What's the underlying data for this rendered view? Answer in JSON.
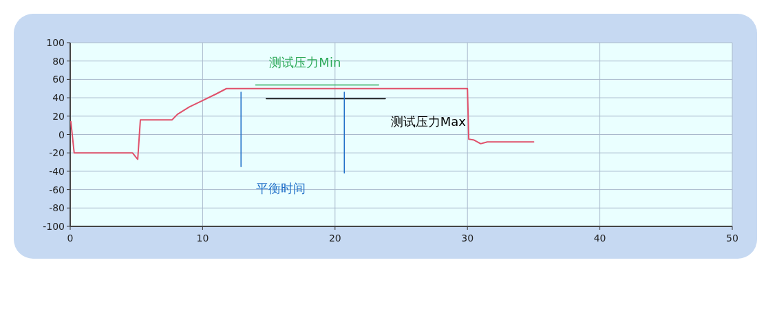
{
  "chart_data": {
    "type": "line",
    "xlim": [
      0,
      50
    ],
    "xticks": [
      0,
      10,
      20,
      30,
      40,
      50
    ],
    "ylim": [
      -100,
      100
    ],
    "yticks": [
      -100,
      -80,
      -60,
      -40,
      -20,
      0,
      20,
      40,
      60,
      80,
      100
    ],
    "grid": true,
    "marker": "none",
    "line_style": "solid",
    "series": [
      {
        "color": "#e0506a",
        "x": [
          0.05,
          0.3,
          4.7,
          5.1,
          5.3,
          7.7,
          8.1,
          9,
          10,
          11,
          11.8,
          12.2,
          30,
          30.1,
          30.5,
          31,
          31.5,
          35
        ],
        "values": [
          14,
          -20,
          -20,
          -27,
          16,
          16,
          22,
          30,
          37,
          44,
          50,
          50,
          50,
          -5,
          -6,
          -10,
          -8,
          -8
        ]
      },
      {
        "name": "测试压力Min",
        "color": "#2eaa5a",
        "x": [
          14,
          23.3
        ],
        "values": [
          54,
          54
        ]
      },
      {
        "name": "测试压力Max",
        "color": "#000000",
        "x": [
          14.8,
          23.8
        ],
        "values": [
          39,
          39
        ]
      },
      {
        "name": "平衡时间",
        "color": "#1f6fc8",
        "x": [
          12.9,
          12.9
        ],
        "values": [
          46,
          -35
        ]
      },
      {
        "color": "#1f6fc8",
        "x": [
          20.7,
          20.7
        ],
        "values": [
          46,
          -42
        ]
      }
    ]
  }
}
